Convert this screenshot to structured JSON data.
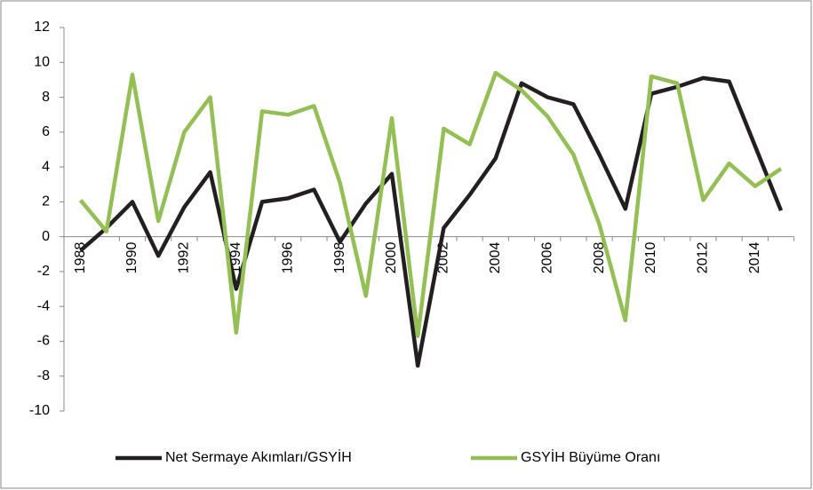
{
  "chart_data": {
    "type": "line",
    "categories": [
      "1988",
      null,
      "1990",
      null,
      "1992",
      null,
      "1994",
      null,
      "1996",
      null,
      "1998",
      null,
      "2000",
      null,
      "2002",
      null,
      "2004",
      null,
      "2006",
      null,
      "2008",
      null,
      "2010",
      null,
      "2012",
      null,
      "2014",
      null
    ],
    "series": [
      {
        "name": "Net Sermaye Akımları/GSYİH",
        "color": "#231f20",
        "values": [
          -0.8,
          0.5,
          2.0,
          -1.1,
          1.7,
          3.7,
          -3.0,
          2.0,
          2.2,
          2.7,
          -0.3,
          1.9,
          3.6,
          -7.4,
          0.5,
          2.4,
          4.5,
          8.8,
          8.0,
          7.6,
          4.7,
          1.6,
          8.2,
          8.6,
          9.1,
          8.9,
          5.2,
          1.5
        ]
      },
      {
        "name": "GSYİH Büyüme Oranı",
        "color": "#93bf55",
        "values": [
          2.1,
          0.3,
          9.3,
          0.9,
          6.0,
          8.0,
          -5.5,
          7.2,
          7.0,
          7.5,
          3.1,
          -3.4,
          6.8,
          -5.7,
          6.2,
          5.3,
          9.4,
          8.4,
          6.9,
          4.7,
          0.7,
          -4.8,
          9.2,
          8.8,
          2.1,
          4.2,
          2.9,
          3.9
        ]
      }
    ],
    "ylim": [
      -10,
      12
    ],
    "yticks": [
      -10,
      -8,
      -6,
      -4,
      -2,
      0,
      2,
      4,
      6,
      8,
      10,
      12
    ],
    "legend": "bottom"
  }
}
